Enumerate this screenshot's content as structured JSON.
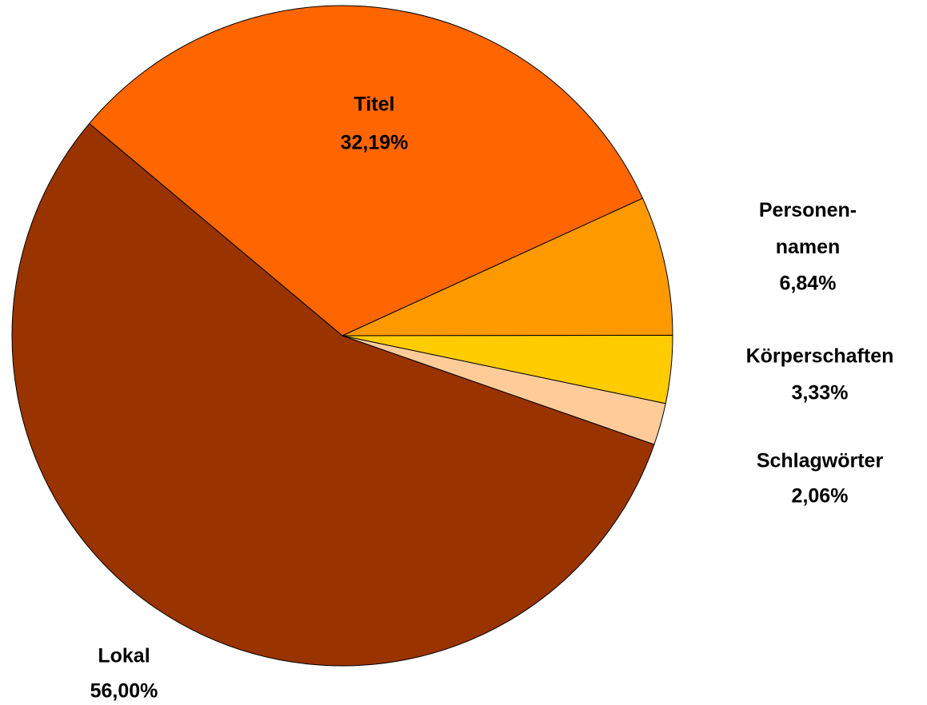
{
  "chart_data": {
    "type": "pie",
    "categories": [
      "Titel",
      "Personen-\nnamen",
      "Körperschaften",
      "Schlagwörter",
      "Lokal"
    ],
    "values": [
      32.19,
      6.84,
      3.33,
      2.06,
      56.0
    ],
    "value_labels": [
      "32,19%",
      "6,84%",
      "3,33%",
      "2,06%",
      "56,00%"
    ],
    "colors": [
      "#ff6600",
      "#ff9900",
      "#ffcc00",
      "#ffcc99",
      "#993300"
    ]
  }
}
